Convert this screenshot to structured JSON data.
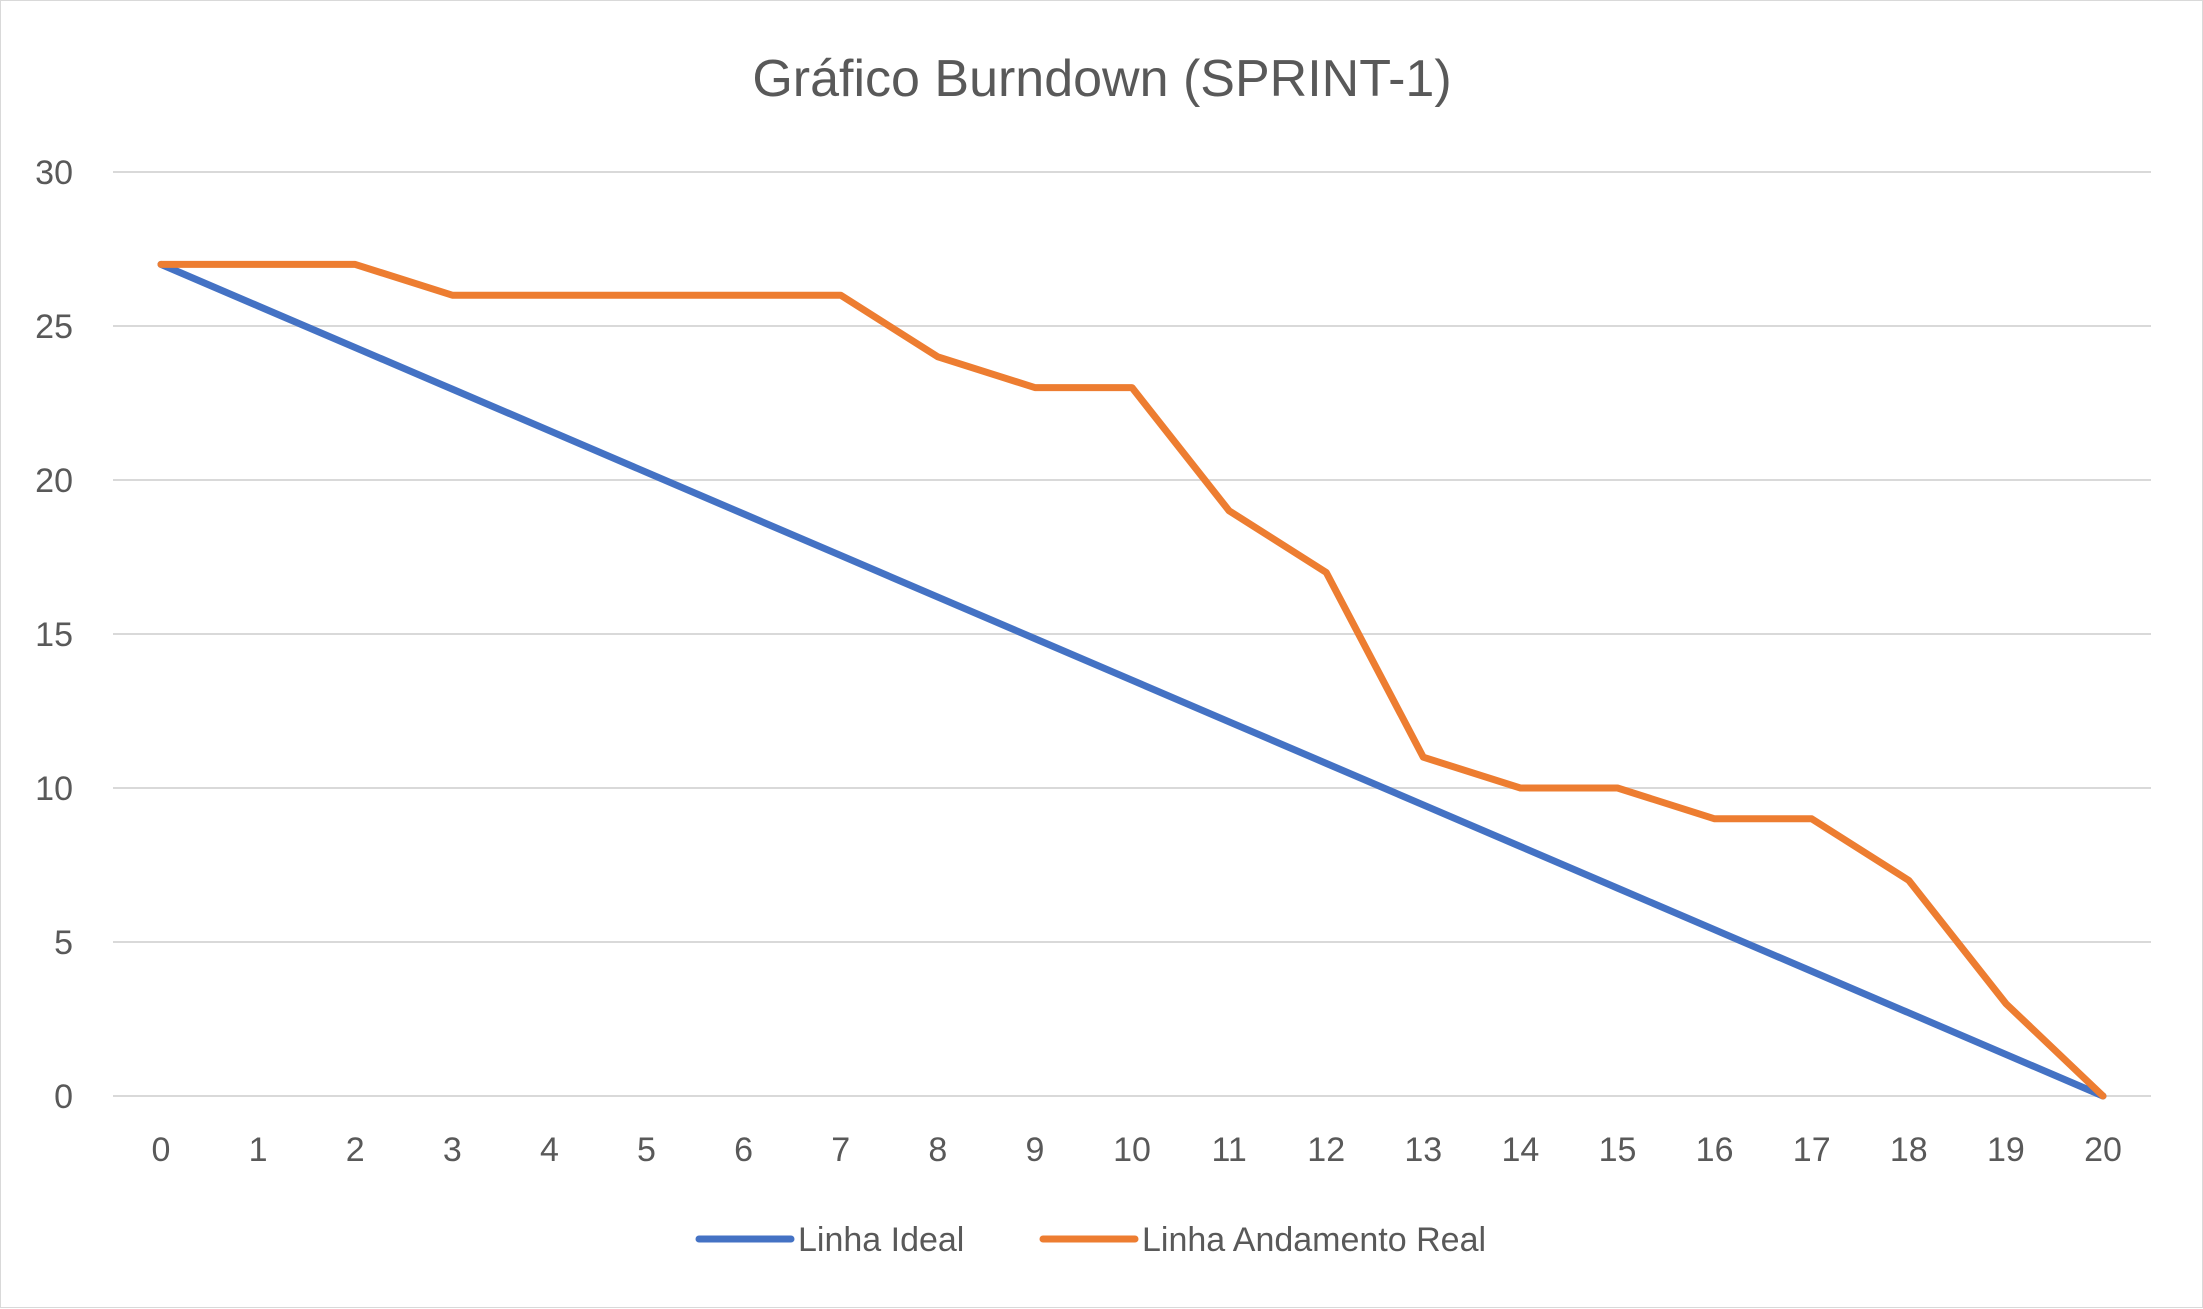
{
  "chart_data": {
    "type": "line",
    "title": "Gráfico Burndown (SPRINT-1)",
    "xlabel": "",
    "ylabel": "",
    "x": [
      0,
      1,
      2,
      3,
      4,
      5,
      6,
      7,
      8,
      9,
      10,
      11,
      12,
      13,
      14,
      15,
      16,
      17,
      18,
      19,
      20
    ],
    "ylim": [
      0,
      30
    ],
    "yticks": [
      0,
      5,
      10,
      15,
      20,
      25,
      30
    ],
    "grid": true,
    "legend_position": "bottom",
    "series": [
      {
        "name": "Linha Ideal",
        "color": "#4472c4",
        "values": [
          27,
          25.65,
          24.3,
          22.95,
          21.6,
          20.25,
          18.9,
          17.55,
          16.2,
          14.85,
          13.5,
          12.15,
          10.8,
          9.45,
          8.1,
          6.75,
          5.4,
          4.05,
          2.7,
          1.35,
          0
        ]
      },
      {
        "name": "Linha Andamento Real",
        "color": "#ed7d31",
        "values": [
          27,
          27,
          27,
          26,
          26,
          26,
          26,
          26,
          24,
          23,
          23,
          19,
          17,
          11,
          10,
          10,
          9,
          9,
          7,
          3,
          0
        ]
      }
    ]
  }
}
